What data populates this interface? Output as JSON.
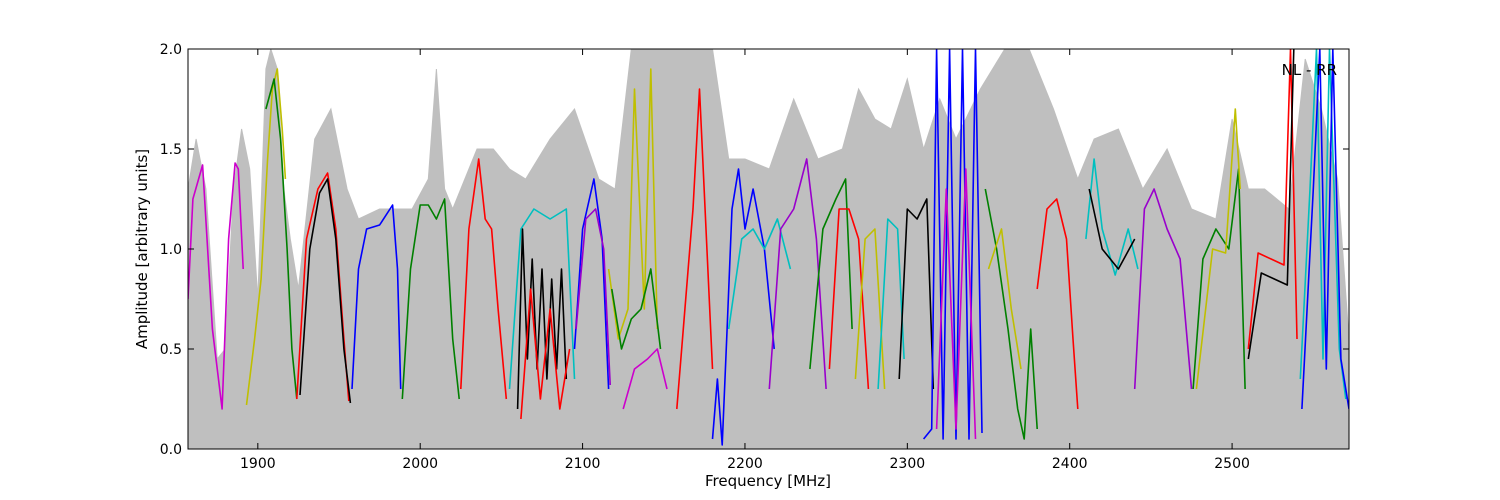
{
  "chart_data": {
    "type": "line",
    "title": "",
    "xlabel": "Frequency [MHz]",
    "ylabel": "Amplitude [arbitrary units]",
    "xlim": [
      1857,
      2572
    ],
    "ylim": [
      0,
      2.0
    ],
    "xticks": [
      1900,
      2000,
      2100,
      2200,
      2300,
      2400,
      2500
    ],
    "xtick_labels": [
      "1900",
      "2000",
      "2100",
      "2200",
      "2300",
      "2400",
      "2500"
    ],
    "yticks": [
      0,
      0.5,
      1.0,
      1.5,
      2.0
    ],
    "ytick_labels": [
      "0.0",
      "0.5",
      "1.0",
      "1.5",
      "2.0"
    ],
    "annotation": "NL - RR",
    "grid": false,
    "envelope": {
      "color": "#bfbfbf",
      "x": [
        1857,
        1862,
        1868,
        1875,
        1880,
        1885,
        1890,
        1895,
        1900,
        1905,
        1908,
        1912,
        1916,
        1920,
        1925,
        1935,
        1945,
        1955,
        1962,
        1975,
        1985,
        1995,
        2005,
        2010,
        2015,
        2020,
        2035,
        2045,
        2055,
        2065,
        2080,
        2095,
        2110,
        2120,
        2130,
        2140,
        2150,
        2160,
        2170,
        2180,
        2190,
        2200,
        2215,
        2230,
        2245,
        2260,
        2270,
        2280,
        2290,
        2300,
        2310,
        2320,
        2330,
        2345,
        2360,
        2375,
        2390,
        2405,
        2415,
        2430,
        2445,
        2460,
        2475,
        2490,
        2500,
        2510,
        2520,
        2535,
        2545,
        2555,
        2565,
        2572
      ],
      "y": [
        1.3,
        1.55,
        1.3,
        0.45,
        0.5,
        1.3,
        1.6,
        1.4,
        0.75,
        1.9,
        2.0,
        1.9,
        1.3,
        1.05,
        0.8,
        1.55,
        1.7,
        1.3,
        1.15,
        1.2,
        1.2,
        1.2,
        1.35,
        1.9,
        1.3,
        1.2,
        1.5,
        1.5,
        1.4,
        1.35,
        1.55,
        1.7,
        1.35,
        1.3,
        2.0,
        2.0,
        2.0,
        2.0,
        2.0,
        2.0,
        1.45,
        1.45,
        1.4,
        1.75,
        1.45,
        1.5,
        1.8,
        1.65,
        1.6,
        1.85,
        1.5,
        1.75,
        1.55,
        1.8,
        2.0,
        2.0,
        1.7,
        1.35,
        1.55,
        1.6,
        1.3,
        1.5,
        1.2,
        1.15,
        1.65,
        1.3,
        1.3,
        1.2,
        1.95,
        1.7,
        1.35,
        0.55
      ]
    },
    "series": [
      {
        "color": "#cc00cc",
        "x": [
          1857,
          1860,
          1866,
          1872,
          1878,
          1882,
          1886,
          1888,
          1891
        ],
        "y": [
          0.75,
          1.25,
          1.42,
          0.6,
          0.2,
          1.05,
          1.43,
          1.4,
          0.9
        ]
      },
      {
        "color": "#bfbf00",
        "x": [
          1893,
          1898,
          1902,
          1906,
          1909,
          1912,
          1915,
          1917
        ],
        "y": [
          0.22,
          0.55,
          0.85,
          1.45,
          1.8,
          1.9,
          1.6,
          1.35
        ]
      },
      {
        "color": "#008000",
        "x": [
          1905,
          1910,
          1914,
          1918,
          1921,
          1924
        ],
        "y": [
          1.7,
          1.85,
          1.55,
          1.0,
          0.5,
          0.25
        ]
      },
      {
        "color": "#ff0000",
        "x": [
          1924,
          1930,
          1937,
          1943,
          1948,
          1953,
          1956
        ],
        "y": [
          0.25,
          1.05,
          1.3,
          1.38,
          1.1,
          0.55,
          0.24
        ]
      },
      {
        "color": "#000000",
        "x": [
          1926,
          1932,
          1938,
          1943,
          1948,
          1953,
          1957
        ],
        "y": [
          0.27,
          1.0,
          1.28,
          1.35,
          1.05,
          0.5,
          0.23
        ]
      },
      {
        "color": "#0000ff",
        "x": [
          1958,
          1962,
          1967,
          1975,
          1983,
          1986,
          1988
        ],
        "y": [
          0.3,
          0.9,
          1.1,
          1.12,
          1.22,
          0.9,
          0.3
        ]
      },
      {
        "color": "#008000",
        "x": [
          1989,
          1994,
          2000,
          2005,
          2010,
          2015,
          2020,
          2024
        ],
        "y": [
          0.25,
          0.9,
          1.22,
          1.22,
          1.15,
          1.25,
          0.55,
          0.25
        ]
      },
      {
        "color": "#ff0000",
        "x": [
          2025,
          2030,
          2036,
          2040,
          2044,
          2048,
          2053
        ],
        "y": [
          0.3,
          1.1,
          1.45,
          1.15,
          1.1,
          0.7,
          0.25
        ]
      },
      {
        "color": "#00bfbf",
        "x": [
          2055,
          2062,
          2070,
          2080,
          2090,
          2095
        ],
        "y": [
          0.3,
          1.1,
          1.2,
          1.15,
          1.2,
          0.35
        ]
      },
      {
        "color": "#000000",
        "x": [
          2060,
          2063,
          2066,
          2069,
          2072,
          2075,
          2078,
          2081,
          2084,
          2087,
          2090
        ],
        "y": [
          0.2,
          1.1,
          0.45,
          0.95,
          0.4,
          0.9,
          0.35,
          0.85,
          0.4,
          0.9,
          0.35
        ]
      },
      {
        "color": "#ff0000",
        "x": [
          2062,
          2068,
          2074,
          2080,
          2086,
          2092
        ],
        "y": [
          0.15,
          0.8,
          0.25,
          0.7,
          0.2,
          0.5
        ]
      },
      {
        "color": "#0000ff",
        "x": [
          2095,
          2100,
          2107,
          2112,
          2116
        ],
        "y": [
          0.5,
          1.1,
          1.35,
          1.05,
          0.3
        ]
      },
      {
        "color": "#9900cc",
        "x": [
          2096,
          2102,
          2108,
          2113,
          2117
        ],
        "y": [
          0.6,
          1.15,
          1.2,
          1.0,
          0.32
        ]
      },
      {
        "color": "#bfbf00",
        "x": [
          2116,
          2122,
          2128,
          2132,
          2138,
          2142,
          2146
        ],
        "y": [
          0.9,
          0.55,
          0.7,
          1.8,
          0.7,
          1.9,
          0.6
        ]
      },
      {
        "color": "#008000",
        "x": [
          2118,
          2124,
          2130,
          2136,
          2142,
          2148
        ],
        "y": [
          0.8,
          0.5,
          0.65,
          0.7,
          0.9,
          0.5
        ]
      },
      {
        "color": "#cc00cc",
        "x": [
          2125,
          2132,
          2140,
          2146,
          2152
        ],
        "y": [
          0.2,
          0.4,
          0.45,
          0.5,
          0.3
        ]
      },
      {
        "color": "#ff0000",
        "x": [
          2158,
          2162,
          2168,
          2172,
          2176,
          2180
        ],
        "y": [
          0.2,
          0.6,
          1.2,
          1.8,
          1.1,
          0.4
        ]
      },
      {
        "color": "#0000ff",
        "x": [
          2180,
          2183,
          2186,
          2189,
          2192,
          2196,
          2200,
          2205,
          2212,
          2218
        ],
        "y": [
          0.05,
          0.35,
          0.02,
          0.6,
          1.2,
          1.4,
          1.1,
          1.3,
          1.0,
          0.5
        ]
      },
      {
        "color": "#00bfbf",
        "x": [
          2190,
          2198,
          2205,
          2212,
          2220,
          2228
        ],
        "y": [
          0.6,
          1.05,
          1.1,
          1.0,
          1.15,
          0.9
        ]
      },
      {
        "color": "#9900cc",
        "x": [
          2215,
          2222,
          2230,
          2238,
          2244,
          2250
        ],
        "y": [
          0.3,
          1.1,
          1.2,
          1.45,
          1.05,
          0.3
        ]
      },
      {
        "color": "#008000",
        "x": [
          2240,
          2248,
          2256,
          2262,
          2266
        ],
        "y": [
          0.4,
          1.1,
          1.25,
          1.35,
          0.6
        ]
      },
      {
        "color": "#ff0000",
        "x": [
          2252,
          2258,
          2264,
          2270,
          2276
        ],
        "y": [
          0.4,
          1.2,
          1.2,
          1.05,
          0.3
        ]
      },
      {
        "color": "#bfbf00",
        "x": [
          2268,
          2274,
          2280,
          2286
        ],
        "y": [
          0.35,
          1.05,
          1.1,
          0.3
        ]
      },
      {
        "color": "#00bfbf",
        "x": [
          2282,
          2288,
          2294,
          2298
        ],
        "y": [
          0.3,
          1.15,
          1.1,
          0.45
        ]
      },
      {
        "color": "#000000",
        "x": [
          2295,
          2300,
          2306,
          2312,
          2316
        ],
        "y": [
          0.35,
          1.2,
          1.15,
          1.25,
          0.3
        ]
      },
      {
        "color": "#0000ff",
        "x": [
          2310,
          2315,
          2318,
          2322,
          2326,
          2330,
          2334,
          2338,
          2342,
          2346
        ],
        "y": [
          0.05,
          0.1,
          2.0,
          0.05,
          2.0,
          0.05,
          2.0,
          0.05,
          2.0,
          0.08
        ]
      },
      {
        "color": "#cc00cc",
        "x": [
          2318,
          2324,
          2330,
          2336,
          2342
        ],
        "y": [
          0.1,
          1.3,
          0.1,
          1.4,
          0.05
        ]
      },
      {
        "color": "#008000",
        "x": [
          2348,
          2355,
          2362,
          2368,
          2372,
          2376,
          2380
        ],
        "y": [
          1.3,
          1.0,
          0.6,
          0.2,
          0.05,
          0.6,
          0.1
        ]
      },
      {
        "color": "#bfbf00",
        "x": [
          2350,
          2358,
          2364,
          2370
        ],
        "y": [
          0.9,
          1.1,
          0.7,
          0.4
        ]
      },
      {
        "color": "#ff0000",
        "x": [
          2380,
          2386,
          2392,
          2398,
          2402,
          2405
        ],
        "y": [
          0.8,
          1.2,
          1.25,
          1.05,
          0.55,
          0.2
        ]
      },
      {
        "color": "#00bfbf",
        "x": [
          2410,
          2415,
          2420,
          2428,
          2436,
          2442
        ],
        "y": [
          1.05,
          1.45,
          1.1,
          0.87,
          1.1,
          0.9
        ]
      },
      {
        "color": "#000000",
        "x": [
          2412,
          2420,
          2430,
          2440
        ],
        "y": [
          1.3,
          1.0,
          0.9,
          1.05
        ]
      },
      {
        "color": "#9900cc",
        "x": [
          2440,
          2446,
          2452,
          2460,
          2468,
          2475
        ],
        "y": [
          0.3,
          1.2,
          1.3,
          1.1,
          0.95,
          0.3
        ]
      },
      {
        "color": "#008000",
        "x": [
          2476,
          2482,
          2490,
          2498,
          2504,
          2508
        ],
        "y": [
          0.3,
          0.95,
          1.1,
          1.0,
          1.4,
          0.3
        ]
      },
      {
        "color": "#bfbf00",
        "x": [
          2478,
          2488,
          2496,
          2502,
          2505
        ],
        "y": [
          0.3,
          1.0,
          0.98,
          1.7,
          1.3
        ]
      },
      {
        "color": "#ff0000",
        "x": [
          2510,
          2516,
          2524,
          2532,
          2536,
          2540
        ],
        "y": [
          0.5,
          0.98,
          0.95,
          0.92,
          2.0,
          0.55
        ]
      },
      {
        "color": "#000000",
        "x": [
          2510,
          2518,
          2526,
          2534,
          2538
        ],
        "y": [
          0.45,
          0.88,
          0.85,
          0.82,
          2.0
        ]
      },
      {
        "color": "#00bfbf",
        "x": [
          2542,
          2548,
          2552,
          2556,
          2560,
          2566,
          2570
        ],
        "y": [
          0.35,
          1.3,
          2.0,
          0.45,
          2.0,
          0.5,
          0.25
        ]
      },
      {
        "color": "#0000ff",
        "x": [
          2543,
          2550,
          2554,
          2558,
          2562,
          2567,
          2572
        ],
        "y": [
          0.2,
          1.3,
          2.0,
          0.4,
          2.0,
          0.45,
          0.2
        ]
      }
    ]
  }
}
